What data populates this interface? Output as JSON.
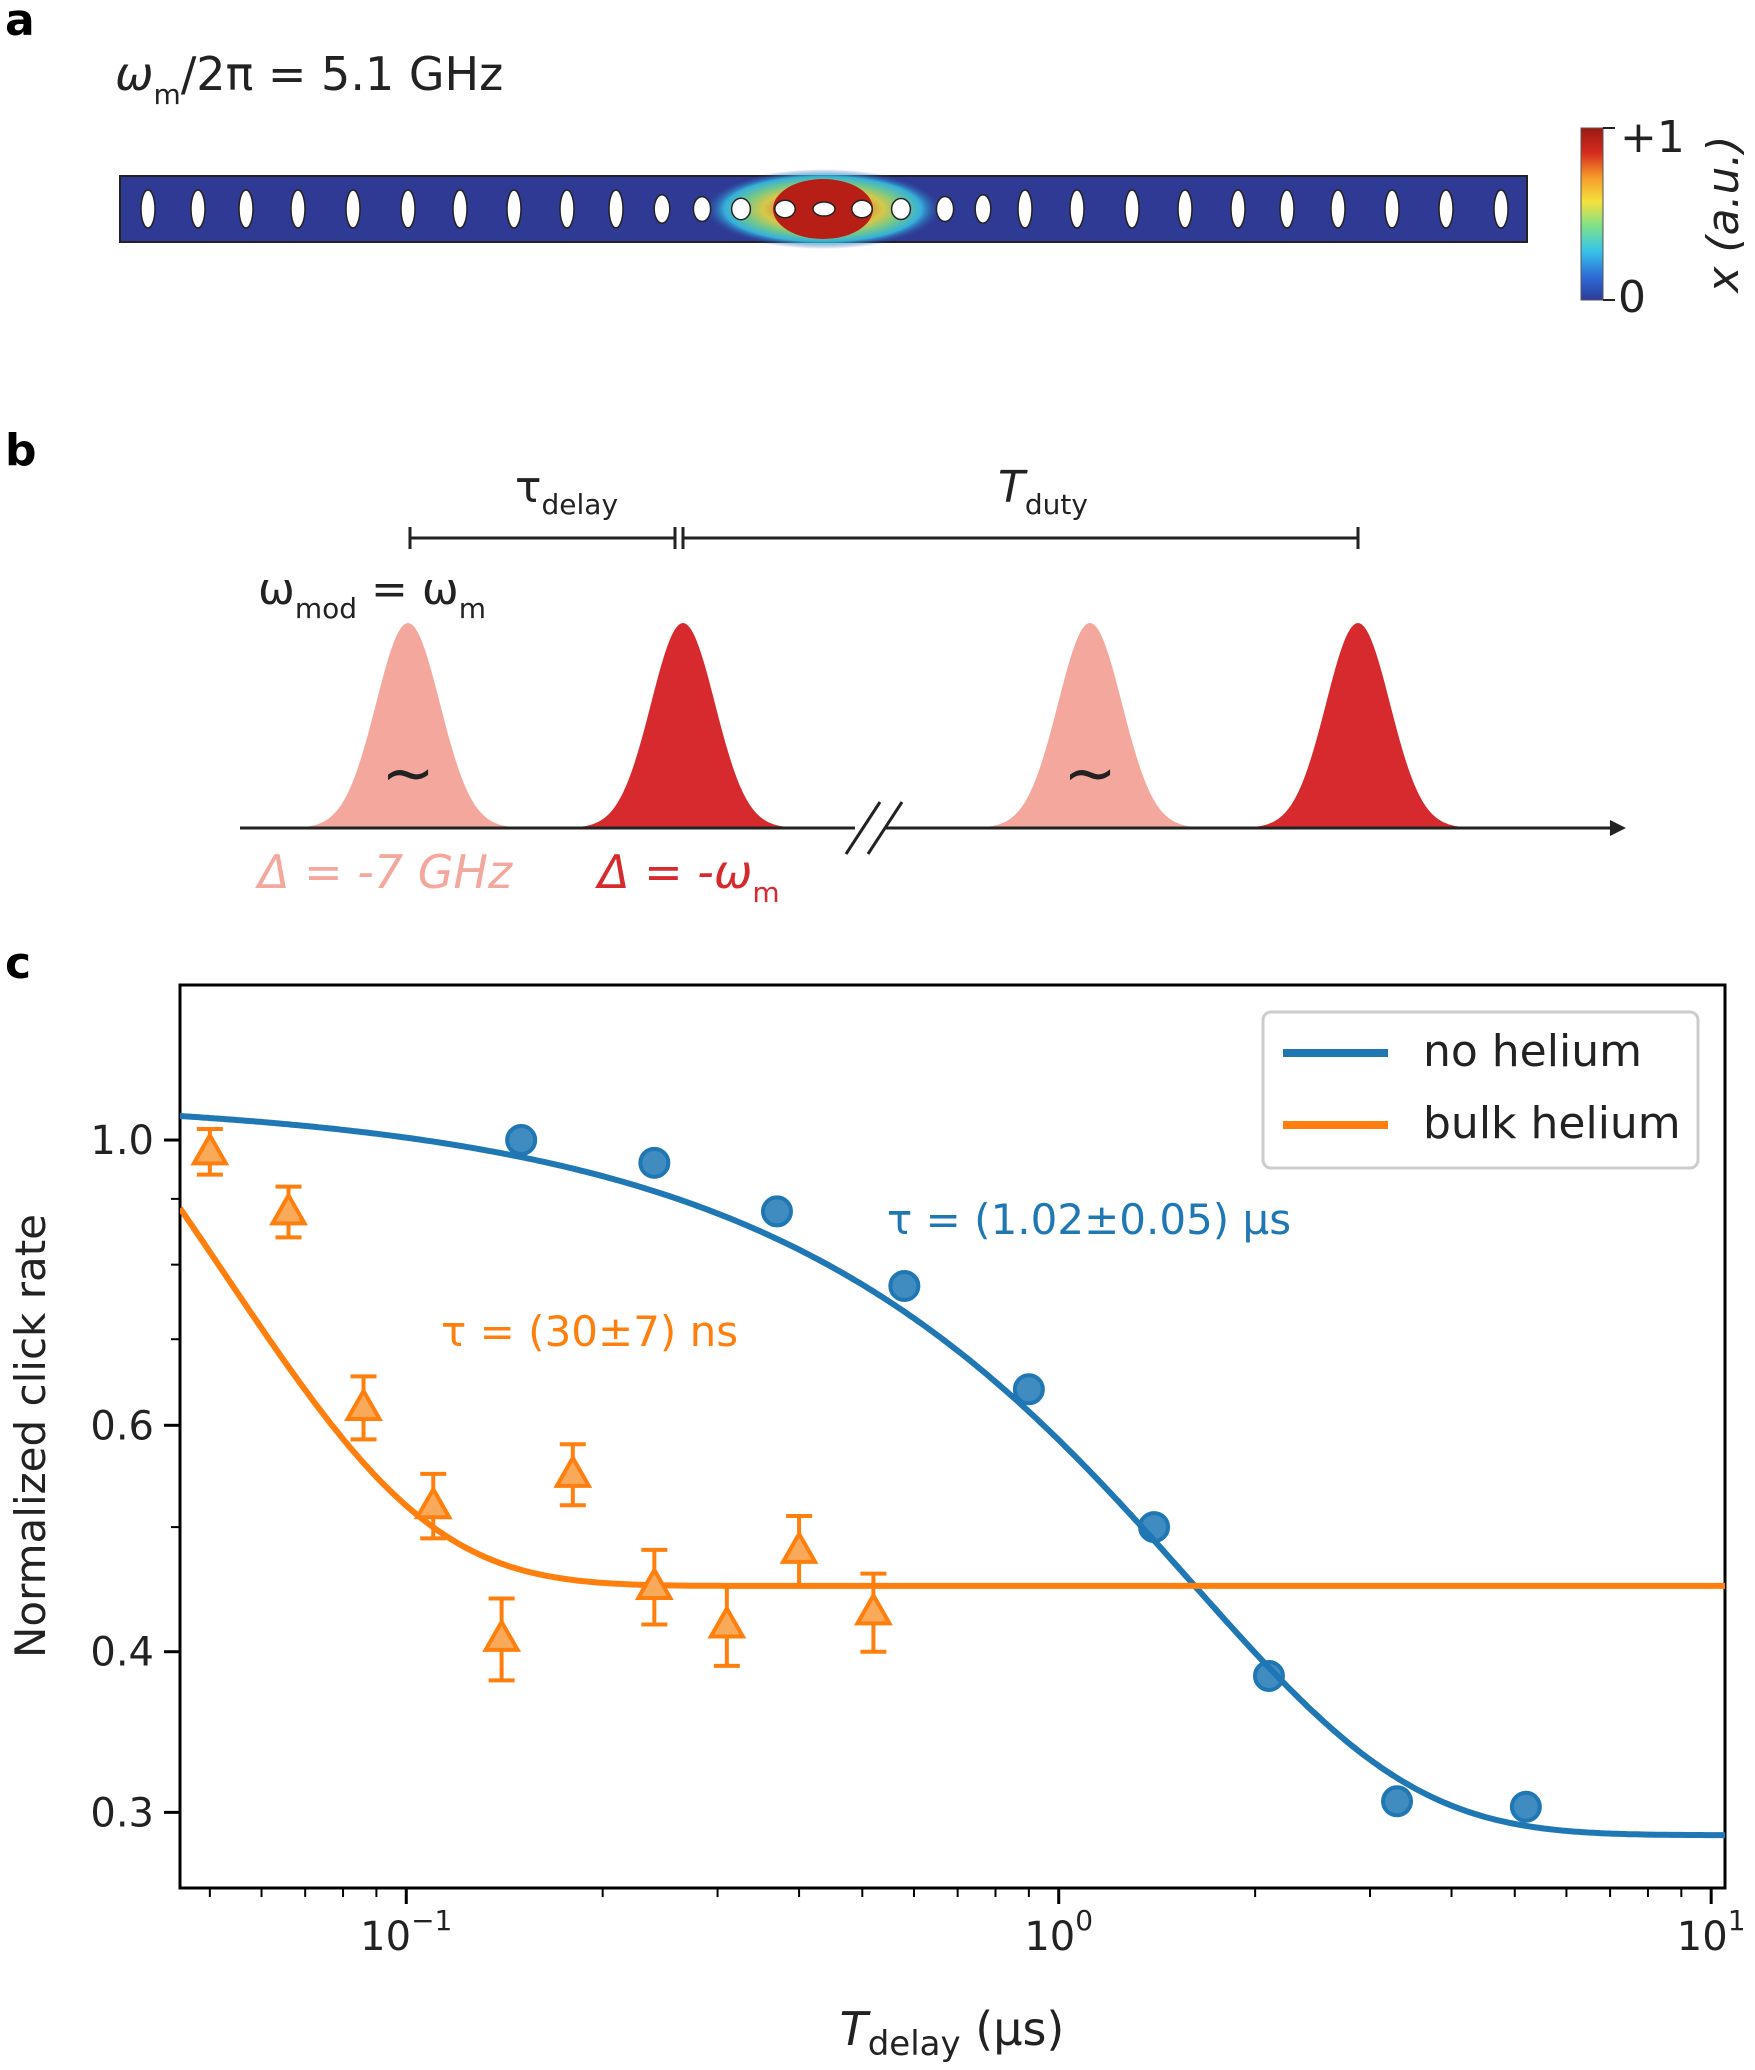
{
  "panel_a": {
    "label": "a",
    "freq_symbol": "ω",
    "freq_sub": "m",
    "freq_rest": "/2π = 5.1 GHz",
    "colorbar_max": "+1",
    "colorbar_min": "0",
    "colorbar_label": "x (a.u.)",
    "colormap": [
      "#2b3a9b",
      "#2f6fd8",
      "#36c5e8",
      "#7de08a",
      "#f4e23c",
      "#f59a2b",
      "#d62a1e",
      "#9a1a12"
    ]
  },
  "panel_b": {
    "label": "b",
    "tau_symbol": "τ",
    "tau_sub": "delay",
    "tduty_symbol": "T",
    "tduty_sub": "duty",
    "wmod_symbol": "ω",
    "wmod_sub": "mod",
    "wmod_eq": " = ω",
    "wmod_eq_sub": "m",
    "tilde": "~",
    "detuning1": "Δ = -7 GHz",
    "detuning2_main": "Δ = -ω",
    "detuning2_sub": "m",
    "pulse_light_color": "#f4a79d",
    "pulse_dark_color": "#d62a2e"
  },
  "panel_c": {
    "label": "c"
  },
  "chart_data": {
    "type": "scatter",
    "xscale": "log",
    "yscale": "log",
    "xlim": [
      0.045,
      10.5
    ],
    "ylim": [
      0.262,
      1.32
    ],
    "xlabel_main": "T",
    "xlabel_sub": "delay",
    "xlabel_unit": " (μs)",
    "ylabel": "Normalized click rate",
    "x_ticks": [
      {
        "value": 0.1,
        "base": "10",
        "exp": "−1"
      },
      {
        "value": 1,
        "base": "10",
        "exp": "0"
      },
      {
        "value": 10,
        "base": "10",
        "exp": "1"
      }
    ],
    "y_ticks": [
      {
        "value": 0.3,
        "label": "0.3"
      },
      {
        "value": 0.4,
        "label": "0.4"
      },
      {
        "value": 0.6,
        "label": "0.6"
      },
      {
        "value": 1.0,
        "label": "1.0"
      }
    ],
    "y_minor_ticks": [
      0.5,
      0.7,
      0.8,
      0.9
    ],
    "legend_position": "top-right",
    "series": [
      {
        "name": "no helium",
        "color": "#1f77b4",
        "marker": "circle",
        "x": [
          0.15,
          0.24,
          0.37,
          0.58,
          0.9,
          1.4,
          2.1,
          3.3,
          5.2
        ],
        "y": [
          1.0,
          0.96,
          0.88,
          0.77,
          0.64,
          0.5,
          0.383,
          0.306,
          0.303
        ],
        "fit": {
          "A": 0.79,
          "tau": 1.02,
          "C": 0.288
        },
        "annotation": "τ = (1.02±0.05) μs"
      },
      {
        "name": "bulk helium",
        "color": "#ff7f0e",
        "marker": "triangle",
        "x": [
          0.05,
          0.066,
          0.086,
          0.11,
          0.14,
          0.18,
          0.24,
          0.31,
          0.4,
          0.52
        ],
        "y": [
          0.98,
          0.88,
          0.62,
          0.52,
          0.41,
          0.55,
          0.45,
          0.42,
          0.48,
          0.43
        ],
        "yerr": [
          0.04,
          0.04,
          0.035,
          0.03,
          0.03,
          0.03,
          0.03,
          0.03,
          0.03,
          0.03
        ],
        "fit": {
          "A": 1.95,
          "tau": 0.03,
          "C": 0.45
        },
        "annotation": "τ = (30±7) ns"
      }
    ]
  }
}
